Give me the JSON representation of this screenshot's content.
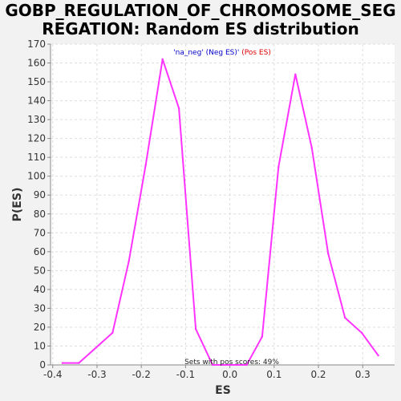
{
  "chart_data": {
    "type": "line",
    "title_lines": [
      "GOBP_REGULATION_OF_CHROMOSOME_SEG",
      "REGATION: Random ES distribution"
    ],
    "xlabel": "ES",
    "ylabel": "P(ES)",
    "xlim": [
      -0.405,
      0.372
    ],
    "ylim": [
      0,
      170
    ],
    "x_ticks": [
      "-0.4",
      "-0.3",
      "-0.2",
      "-0.1",
      "0.0",
      "0.1",
      "0.2",
      "0.3"
    ],
    "x_tick_values": [
      -0.4,
      -0.3,
      -0.2,
      -0.1,
      0.0,
      0.1,
      0.2,
      0.3
    ],
    "y_ticks": [
      "0",
      "10",
      "20",
      "30",
      "40",
      "50",
      "60",
      "70",
      "80",
      "90",
      "100",
      "110",
      "120",
      "130",
      "140",
      "150",
      "160",
      "170"
    ],
    "y_tick_values": [
      0,
      10,
      20,
      30,
      40,
      50,
      60,
      70,
      80,
      90,
      100,
      110,
      120,
      130,
      140,
      150,
      160,
      170
    ],
    "grid": true,
    "series": [
      {
        "color": "#ff33ff",
        "x": [
          -0.378,
          -0.341,
          -0.265,
          -0.228,
          -0.19,
          -0.152,
          -0.115,
          -0.077,
          -0.039,
          0.0,
          0.038,
          0.073,
          0.11,
          0.148,
          0.185,
          0.222,
          0.26,
          0.298,
          0.335
        ],
        "y": [
          1,
          1,
          17,
          55,
          106,
          162,
          136,
          19,
          0,
          0,
          0,
          15,
          105,
          154,
          115,
          59,
          25,
          17,
          5
        ]
      }
    ],
    "legend": {
      "placement": "top-center",
      "entries": [
        {
          "text": "'na_neg' (Neg ES)",
          "color": "#0000cc"
        },
        {
          "text": "'",
          "color": "#0000cc"
        },
        {
          "text": " (Pos ES)",
          "color": "#dd0000"
        }
      ]
    },
    "annotation": "Sets with pos scores: 49%",
    "colors": {
      "background": "#f2f2f2",
      "plot_background": "#ffffff",
      "grid": "#dddddd",
      "axis": "#888888"
    }
  }
}
